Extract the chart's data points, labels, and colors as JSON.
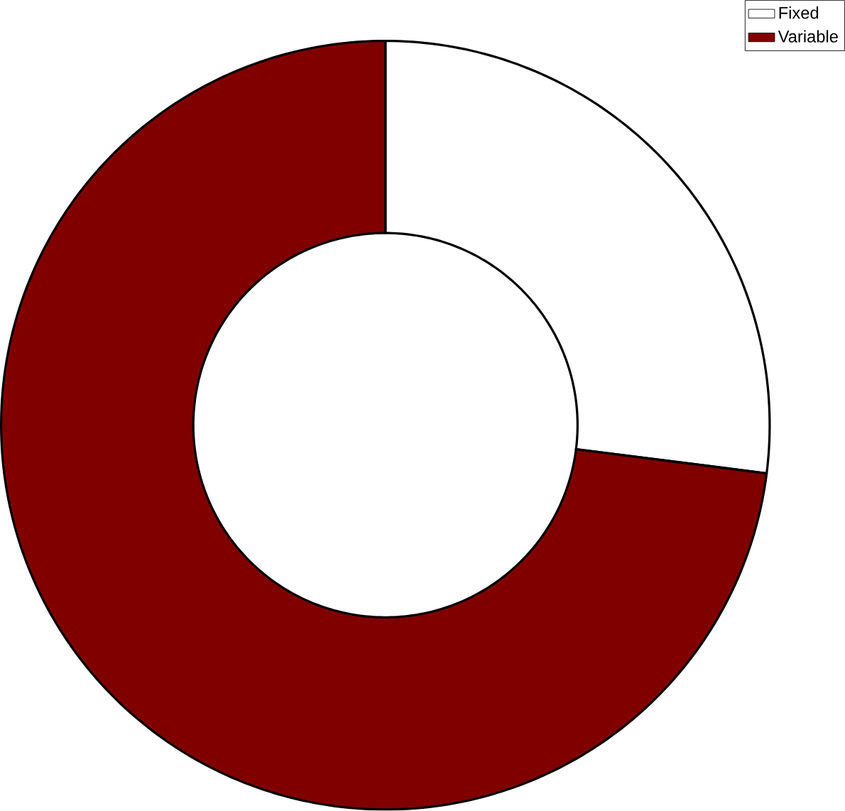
{
  "chart_data": {
    "type": "donut",
    "categories": [
      "Fixed",
      "Variable"
    ],
    "values": [
      27,
      73
    ],
    "colors": [
      "#ffffff",
      "#800000"
    ],
    "legend": "top right"
  }
}
